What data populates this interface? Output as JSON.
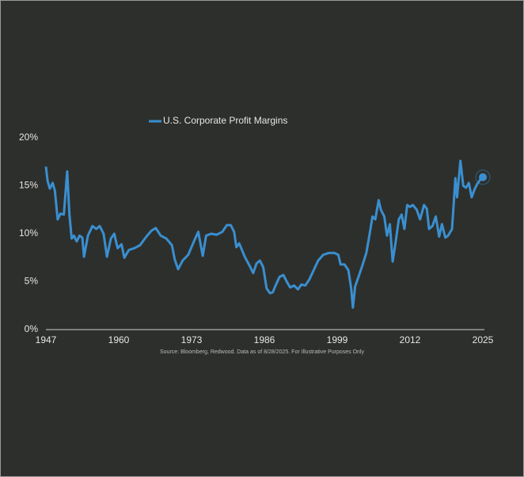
{
  "chart_data": {
    "type": "line",
    "source": "Source: Bloomberg, Redwood. Data as of 8/28/2025. For Illustrative Purposes Only",
    "x": [
      1947,
      1947.3,
      1947.7,
      1948.2,
      1948.6,
      1949.1,
      1949.6,
      1950.2,
      1950.8,
      1951.2,
      1951.6,
      1952,
      1952.5,
      1953,
      1953.5,
      1953.8,
      1954.5,
      1955.3,
      1956,
      1956.6,
      1957.3,
      1957.9,
      1958.6,
      1959.2,
      1959.8,
      1960.5,
      1961,
      1961.8,
      1962.8,
      1963.8,
      1964.8,
      1965.8,
      1966.6,
      1967.5,
      1968.5,
      1969.5,
      1970,
      1970.6,
      1971.4,
      1972.4,
      1973.5,
      1974.2,
      1975,
      1975.6,
      1976.5,
      1977.5,
      1978.5,
      1979.3,
      1980,
      1980.6,
      1981,
      1981.5,
      1982.5,
      1983.5,
      1984,
      1984.6,
      1985.2,
      1985.8,
      1986.4,
      1987,
      1987.5,
      1988,
      1988.7,
      1989.4,
      1990,
      1990.6,
      1991.3,
      1992,
      1992.6,
      1993.3,
      1994,
      1994.8,
      1995.6,
      1996.5,
      1997.5,
      1998.5,
      1999.2,
      1999.6,
      2000.3,
      2001,
      2001.5,
      2001.8,
      2002.2,
      2002.8,
      2003.5,
      2004.2,
      2004.8,
      2005.3,
      2005.8,
      2006.4,
      2006.8,
      2007.4,
      2007.9,
      2008.4,
      2008.9,
      2009.4,
      2010,
      2010.5,
      2011,
      2011.5,
      2012,
      2012.5,
      2013.2,
      2013.8,
      2014.5,
      2015,
      2015.4,
      2016,
      2016.6,
      2017.2,
      2017.7,
      2018.3,
      2018.8,
      2019.5,
      2020.1,
      2020.4,
      2021,
      2021.5,
      2022,
      2022.5,
      2023,
      2023.5,
      2024,
      2024.5,
      2025
    ],
    "series": [
      {
        "name": "U.S. Corporate Profit Margins",
        "color": "#3a8fd0",
        "values": [
          17,
          15.5,
          14.7,
          15.3,
          14.5,
          11.5,
          12.1,
          12,
          16.5,
          12,
          9.5,
          9.8,
          9.2,
          9.8,
          9.6,
          7.6,
          9.8,
          10.8,
          10.5,
          10.8,
          10,
          7.6,
          9.5,
          10,
          8.5,
          8.9,
          7.5,
          8.3,
          8.5,
          8.8,
          9.6,
          10.3,
          10.6,
          9.8,
          9.5,
          8.8,
          7.3,
          6.3,
          7.2,
          7.8,
          9.3,
          10.2,
          7.7,
          9.8,
          10,
          9.9,
          10.2,
          10.9,
          10.9,
          10.2,
          8.6,
          9,
          7.6,
          6.5,
          5.9,
          6.9,
          7.2,
          6.5,
          4.3,
          3.8,
          3.9,
          4.6,
          5.5,
          5.7,
          5,
          4.4,
          4.6,
          4.2,
          4.7,
          4.6,
          5.2,
          6.2,
          7.2,
          7.8,
          8,
          8,
          7.8,
          6.8,
          6.8,
          6.2,
          4.3,
          2.3,
          4.5,
          5.5,
          6.7,
          8,
          10,
          11.8,
          11.5,
          13.5,
          12.5,
          11.8,
          9.8,
          11,
          7.1,
          9,
          11.5,
          12,
          10.5,
          13,
          12.8,
          13,
          12.5,
          11.5,
          13,
          12.6,
          10.5,
          10.8,
          11.8,
          9.7,
          11,
          9.6,
          9.8,
          10.5,
          15.8,
          13.8,
          17.6,
          15,
          14.8,
          15.3,
          13.8,
          14.6,
          15.2,
          15.6,
          15.9
        ]
      }
    ],
    "xlim": [
      1947,
      2025
    ],
    "xticks": [
      1947,
      1960,
      1973,
      1986,
      1999,
      2012,
      2025
    ],
    "ylim": [
      0,
      20
    ],
    "yticks": [
      {
        "value": 0,
        "label": "0%"
      },
      {
        "value": 5,
        "label": "5%"
      },
      {
        "value": 10,
        "label": "10%"
      },
      {
        "value": 15,
        "label": "15%"
      },
      {
        "value": 20,
        "label": "20%"
      }
    ],
    "grid": false
  }
}
